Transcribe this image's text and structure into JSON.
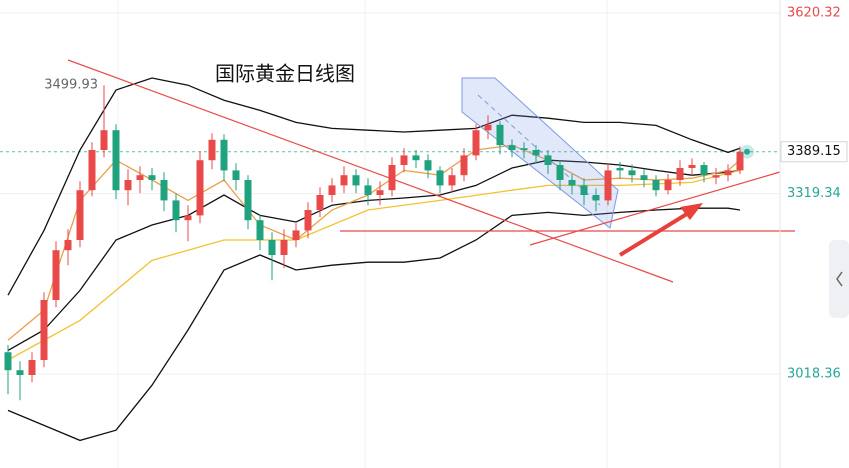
{
  "chart_data": {
    "type": "candlestick",
    "title": "国际黄金日线图",
    "ylim": [
      2862,
      3642
    ],
    "yticks": [
      3620.32,
      3319.34,
      3018.36
    ],
    "ytick_colors": [
      "#e84a4a",
      "#26a69a",
      "#26a69a"
    ],
    "last_price": 3389.15,
    "up_color": "#e84a4a",
    "down_color": "#20a27e",
    "open": [
      3055,
      3025,
      3017,
      3042,
      3142,
      3225,
      3242,
      3325,
      3392,
      3425,
      3325,
      3342,
      3350,
      3342,
      3308,
      3275,
      3283,
      3375,
      3409,
      3358,
      3342,
      3275,
      3242,
      3217,
      3242,
      3258,
      3292,
      3317,
      3333,
      3350,
      3333,
      3317,
      3325,
      3367,
      3383,
      3375,
      3358,
      3333,
      3350,
      3383,
      3425,
      3434,
      3400,
      3395,
      3392,
      3383,
      3367,
      3342,
      3333,
      3317,
      3308,
      3362,
      3358,
      3350,
      3342,
      3325,
      3342,
      3362,
      3367,
      3346,
      3350,
      3358
    ],
    "high": [
      3067,
      3040,
      3055,
      3155,
      3240,
      3260,
      3340,
      3405,
      3499.93,
      3435,
      3360,
      3365,
      3362,
      3355,
      3320,
      3300,
      3390,
      3420,
      3418,
      3370,
      3350,
      3285,
      3255,
      3260,
      3270,
      3305,
      3330,
      3345,
      3365,
      3360,
      3345,
      3340,
      3380,
      3395,
      3392,
      3385,
      3365,
      3362,
      3395,
      3435,
      3450,
      3440,
      3410,
      3405,
      3400,
      3392,
      3375,
      3352,
      3345,
      3328,
      3370,
      3372,
      3368,
      3360,
      3350,
      3352,
      3375,
      3378,
      3372,
      3362,
      3368,
      3398
    ],
    "low": [
      2985,
      2975,
      3005,
      3030,
      3130,
      3200,
      3230,
      3315,
      3380,
      3310,
      3300,
      3320,
      3325,
      3290,
      3255,
      3240,
      3270,
      3360,
      3340,
      3325,
      3260,
      3225,
      3175,
      3195,
      3230,
      3245,
      3280,
      3305,
      3320,
      3320,
      3300,
      3300,
      3315,
      3355,
      3362,
      3345,
      3320,
      3322,
      3340,
      3375,
      3410,
      3385,
      3380,
      3378,
      3370,
      3352,
      3325,
      3318,
      3300,
      3290,
      3300,
      3345,
      3338,
      3330,
      3315,
      3318,
      3332,
      3350,
      3338,
      3335,
      3340,
      3352
    ],
    "close": [
      3025,
      3017,
      3042,
      3142,
      3225,
      3242,
      3325,
      3392,
      3425,
      3325,
      3342,
      3350,
      3342,
      3308,
      3275,
      3283,
      3375,
      3409,
      3358,
      3342,
      3275,
      3242,
      3217,
      3242,
      3258,
      3292,
      3317,
      3333,
      3350,
      3333,
      3317,
      3325,
      3367,
      3383,
      3375,
      3358,
      3333,
      3350,
      3383,
      3425,
      3434,
      3400,
      3392,
      3392,
      3383,
      3367,
      3342,
      3333,
      3317,
      3308,
      3358,
      3358,
      3350,
      3342,
      3325,
      3342,
      3362,
      3367,
      3350,
      3350,
      3358,
      3389
    ],
    "lines": [
      {
        "color": "#111111",
        "x": [
          0,
          3,
          6,
          9,
          12,
          15,
          18,
          21,
          24,
          27,
          30,
          33,
          36,
          39,
          42,
          45,
          48,
          51,
          54,
          57,
          60,
          61
        ],
        "values": [
          3150,
          3258,
          3392,
          3492,
          3512,
          3500,
          3475,
          3458,
          3438,
          3428,
          3425,
          3422,
          3425,
          3428,
          3450,
          3445,
          3438,
          3438,
          3433,
          3409,
          3388,
          3395
        ]
      },
      {
        "color": "#111111",
        "x": [
          0,
          3,
          6,
          9,
          12,
          15,
          18,
          21,
          24,
          27,
          30,
          33,
          36,
          39,
          42,
          45,
          48,
          51,
          54,
          57,
          60,
          61
        ],
        "values": [
          3058,
          3092,
          3158,
          3242,
          3267,
          3283,
          3317,
          3283,
          3272,
          3300,
          3308,
          3312,
          3317,
          3333,
          3362,
          3375,
          3372,
          3367,
          3358,
          3350,
          3355,
          3358
        ]
      },
      {
        "color": "#111111",
        "x": [
          0,
          3,
          6,
          9,
          12,
          15,
          18,
          21,
          24,
          27,
          30,
          33,
          36,
          39,
          42,
          45,
          48,
          51,
          54,
          57,
          60,
          61
        ],
        "values": [
          2958,
          2933,
          2908,
          2925,
          3000,
          3092,
          3192,
          3217,
          3192,
          3200,
          3205,
          3205,
          3212,
          3242,
          3283,
          3288,
          3283,
          3288,
          3292,
          3295,
          3295,
          3292
        ]
      },
      {
        "color": "#f2c230",
        "x": [
          0,
          6,
          12,
          18,
          21,
          24,
          30,
          36,
          42,
          45,
          51,
          57,
          61
        ],
        "values": [
          3042,
          3108,
          3208,
          3242,
          3242,
          3242,
          3292,
          3308,
          3325,
          3333,
          3333,
          3338,
          3358
        ]
      },
      {
        "color": "#e8a04a",
        "x": [
          0,
          3,
          6,
          9,
          12,
          15,
          18,
          21,
          24,
          27,
          30,
          33,
          36,
          39,
          42,
          45,
          48,
          51,
          54,
          57,
          60,
          61
        ],
        "values": [
          3075,
          3125,
          3308,
          3375,
          3342,
          3308,
          3342,
          3267,
          3242,
          3292,
          3317,
          3358,
          3350,
          3392,
          3400,
          3375,
          3342,
          3345,
          3342,
          3345,
          3358,
          3375
        ]
      }
    ]
  }
}
